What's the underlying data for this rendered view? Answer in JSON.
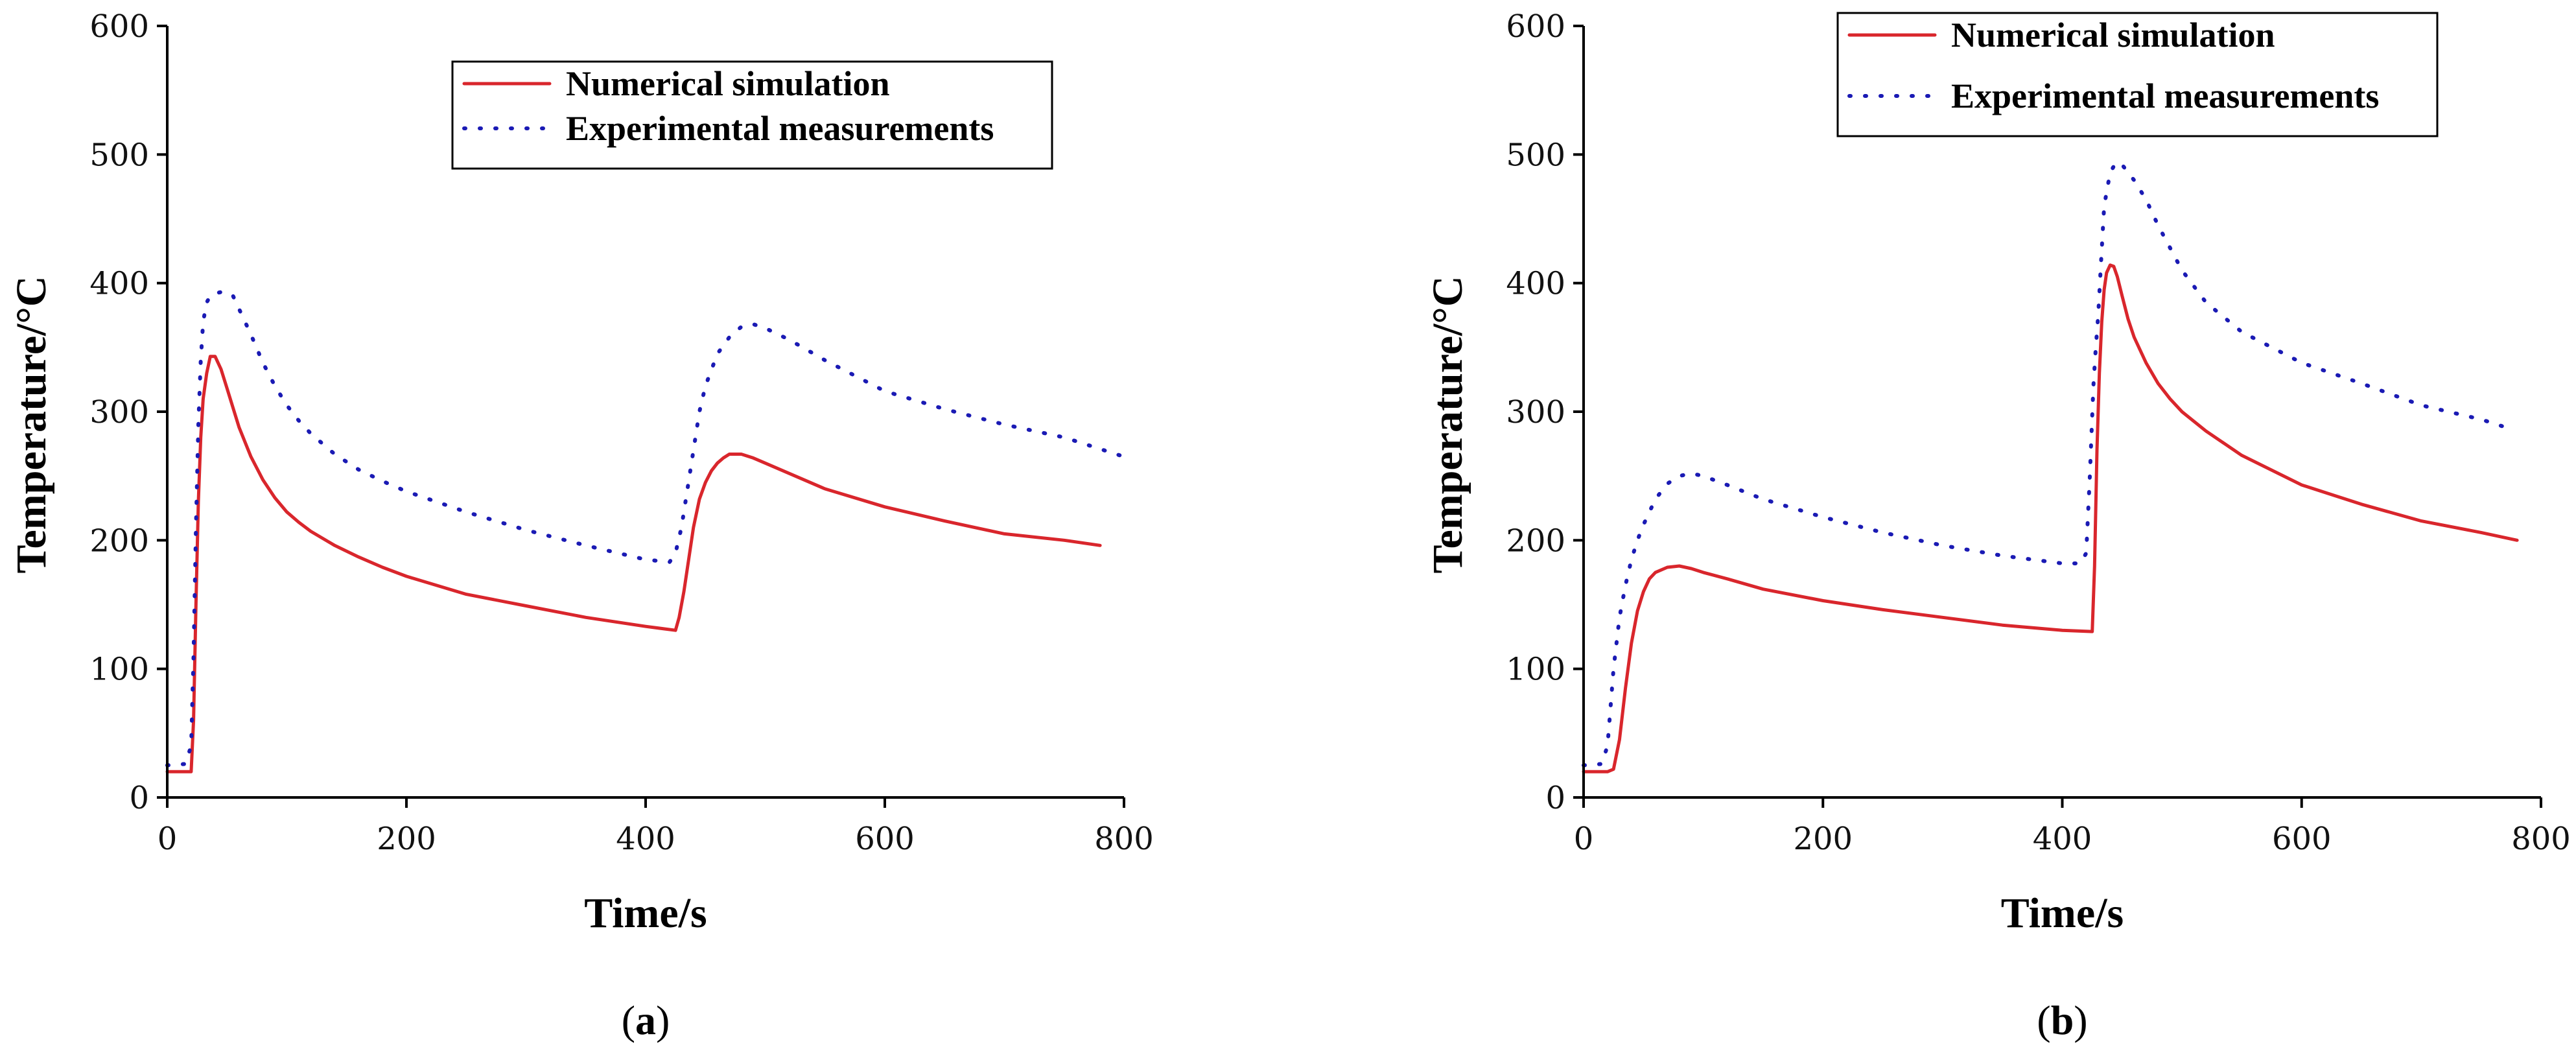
{
  "chart_data": [
    {
      "type": "line",
      "panel_label": "a",
      "xlabel": "Time/s",
      "ylabel": "Temperature/°C",
      "xlim": [
        0,
        800
      ],
      "ylim": [
        0,
        600
      ],
      "xticks": [
        0,
        200,
        400,
        600,
        800
      ],
      "yticks": [
        0,
        100,
        200,
        300,
        400,
        500,
        600
      ],
      "grid": false,
      "legend_position": "top-right",
      "series": [
        {
          "name": "Numerical simulation",
          "style": "solid",
          "color": "#d9262c",
          "x": [
            0,
            20,
            22,
            24,
            26,
            28,
            30,
            33,
            36,
            40,
            45,
            50,
            60,
            70,
            80,
            90,
            100,
            110,
            120,
            140,
            160,
            180,
            200,
            250,
            300,
            350,
            400,
            425,
            428,
            432,
            436,
            440,
            445,
            450,
            455,
            460,
            465,
            470,
            480,
            490,
            500,
            520,
            550,
            600,
            650,
            700,
            750,
            780
          ],
          "y": [
            20,
            20,
            60,
            150,
            230,
            280,
            310,
            330,
            343,
            343,
            333,
            318,
            288,
            265,
            247,
            233,
            222,
            214,
            207,
            196,
            187,
            179,
            172,
            158,
            149,
            140,
            133,
            130,
            140,
            160,
            185,
            210,
            232,
            245,
            254,
            260,
            264,
            267,
            267,
            264,
            260,
            252,
            240,
            226,
            215,
            205,
            200,
            196
          ]
        },
        {
          "name": "Experimental measurements",
          "style": "dotted",
          "color": "#1a1ab4",
          "x": [
            0,
            15,
            20,
            22,
            24,
            26,
            28,
            30,
            33,
            36,
            40,
            45,
            50,
            55,
            60,
            70,
            80,
            90,
            100,
            110,
            120,
            140,
            160,
            180,
            200,
            250,
            300,
            350,
            400,
            420,
            425,
            430,
            435,
            440,
            445,
            450,
            460,
            470,
            480,
            490,
            500,
            520,
            550,
            600,
            650,
            700,
            750,
            800
          ],
          "y": [
            25,
            26,
            40,
            110,
            210,
            290,
            340,
            370,
            385,
            390,
            392,
            393,
            393,
            390,
            380,
            360,
            338,
            320,
            305,
            293,
            283,
            267,
            255,
            246,
            238,
            222,
            208,
            196,
            185,
            183,
            190,
            210,
            240,
            270,
            300,
            320,
            345,
            358,
            366,
            368,
            365,
            356,
            340,
            316,
            302,
            290,
            280,
            265
          ]
        }
      ]
    },
    {
      "type": "line",
      "panel_label": "b",
      "xlabel": "Time/s",
      "ylabel": "Temperature/°C",
      "xlim": [
        0,
        800
      ],
      "ylim": [
        0,
        600
      ],
      "xticks": [
        0,
        200,
        400,
        600,
        800
      ],
      "yticks": [
        0,
        100,
        200,
        300,
        400,
        500,
        600
      ],
      "grid": false,
      "legend_position": "top-right",
      "series": [
        {
          "name": "Numerical simulation",
          "style": "solid",
          "color": "#d9262c",
          "x": [
            0,
            20,
            25,
            30,
            35,
            40,
            45,
            50,
            55,
            60,
            70,
            80,
            90,
            100,
            120,
            150,
            200,
            250,
            300,
            350,
            400,
            425,
            427,
            429,
            431,
            433,
            435,
            437,
            440,
            443,
            446,
            450,
            455,
            460,
            470,
            480,
            490,
            500,
            520,
            550,
            600,
            650,
            700,
            750,
            780
          ],
          "y": [
            20,
            20,
            22,
            45,
            85,
            120,
            145,
            160,
            170,
            175,
            179,
            180,
            178,
            175,
            170,
            162,
            153,
            146,
            140,
            134,
            130,
            129,
            180,
            270,
            330,
            370,
            395,
            408,
            414,
            413,
            405,
            390,
            372,
            358,
            338,
            322,
            310,
            300,
            285,
            266,
            243,
            228,
            215,
            206,
            200
          ]
        },
        {
          "name": "Experimental measurements",
          "style": "dotted",
          "color": "#1a1ab4",
          "x": [
            0,
            15,
            20,
            25,
            30,
            35,
            40,
            45,
            50,
            60,
            70,
            80,
            90,
            100,
            120,
            150,
            200,
            250,
            300,
            350,
            400,
            415,
            420,
            423,
            426,
            428,
            430,
            432,
            435,
            440,
            445,
            450,
            460,
            470,
            480,
            500,
            520,
            550,
            600,
            650,
            700,
            750,
            770
          ],
          "y": [
            25,
            26,
            40,
            100,
            140,
            165,
            185,
            200,
            212,
            232,
            244,
            250,
            252,
            250,
            243,
            232,
            218,
            206,
            196,
            188,
            182,
            182,
            190,
            250,
            320,
            350,
            375,
            410,
            460,
            486,
            494,
            492,
            480,
            465,
            445,
            410,
            385,
            362,
            338,
            322,
            305,
            294,
            288
          ]
        }
      ]
    }
  ]
}
